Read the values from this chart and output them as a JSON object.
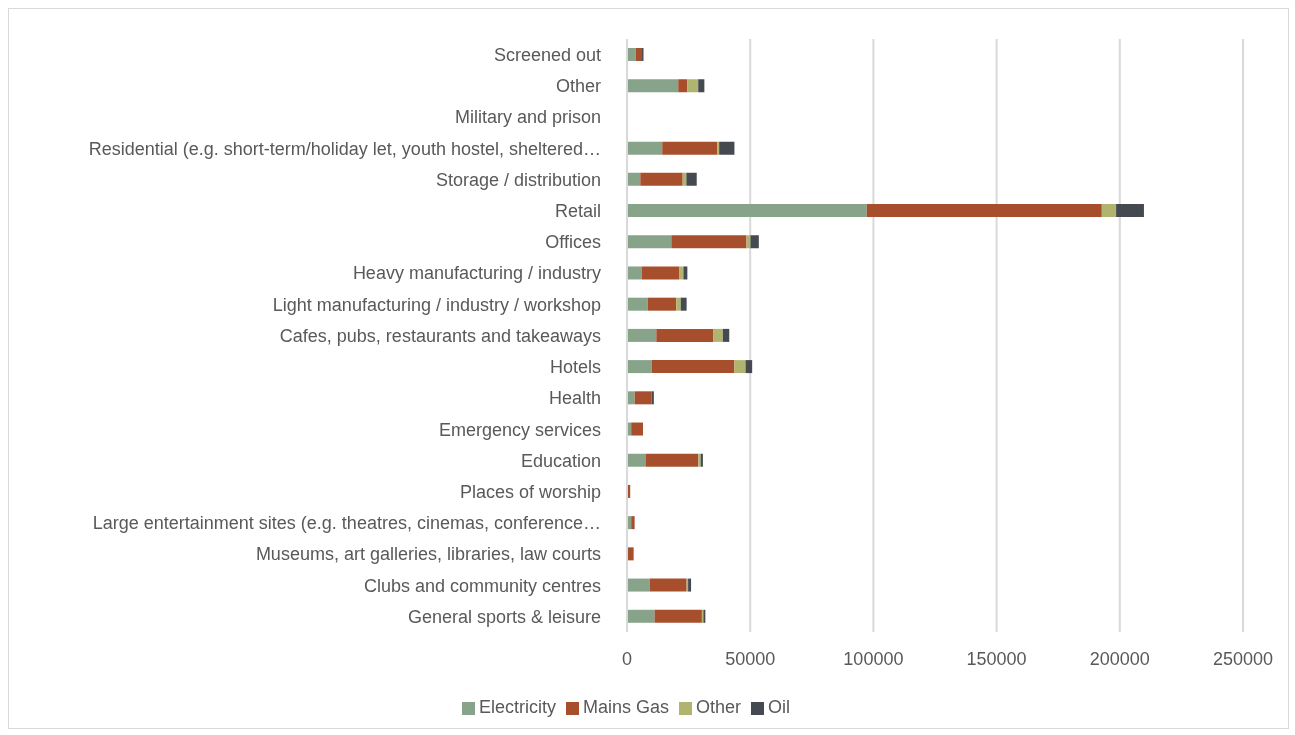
{
  "chart_data": {
    "type": "bar",
    "orientation": "horizontal",
    "stacked": true,
    "categories": [
      "Screened out",
      "Other",
      "Military and prison",
      "Residential (e.g. short-term/holiday let, youth hostel, sheltered…",
      "Storage / distribution",
      "Retail",
      "Offices",
      "Heavy manufacturing / industry",
      "Light manufacturing / industry / workshop",
      "Cafes, pubs, restaurants and takeaways",
      "Hotels",
      "Health",
      "Emergency services",
      "Education",
      "Places of worship",
      "Large entertainment sites (e.g. theatres, cinemas, conference…",
      "Museums, art galleries, libraries, law courts",
      "Clubs and community centres",
      "General sports & leisure"
    ],
    "series": [
      {
        "name": "Electricity",
        "color": "#87a38a",
        "values": [
          3600,
          20800,
          0,
          14300,
          5400,
          97300,
          18000,
          6000,
          8400,
          11900,
          10100,
          3100,
          1700,
          7700,
          null,
          1700,
          null,
          9300,
          11200
        ]
      },
      {
        "name": "Mains Gas",
        "color": "#a74f2d",
        "values": [
          2500,
          3600,
          0,
          22300,
          17200,
          95400,
          30500,
          15300,
          11600,
          23200,
          33500,
          6900,
          4800,
          21200,
          1300,
          1400,
          2700,
          14900,
          19200
        ]
      },
      {
        "name": "Other",
        "color": "#b0b46f",
        "values": [
          0,
          4500,
          0,
          800,
          1500,
          5800,
          1600,
          1600,
          1800,
          3800,
          4500,
          0,
          0,
          1000,
          0,
          0,
          0,
          600,
          600
        ]
      },
      {
        "name": "Oil",
        "color": "#454a50",
        "values": [
          600,
          2500,
          0,
          6200,
          4200,
          11300,
          3400,
          1600,
          2400,
          2600,
          2700,
          900,
          0,
          900,
          0,
          0,
          0,
          1200,
          800
        ]
      }
    ],
    "xlim": [
      0,
      250000
    ],
    "xticks": [
      0,
      50000,
      100000,
      150000,
      200000,
      250000
    ],
    "grid": "x",
    "legend": "bottom"
  }
}
